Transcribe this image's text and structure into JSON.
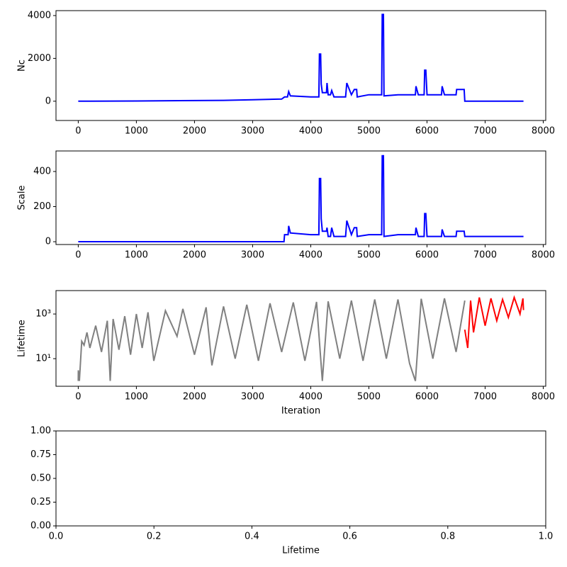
{
  "chart_data": [
    {
      "type": "line",
      "ylabel": "Nc",
      "xlim": [
        -383,
        8043
      ],
      "ylim": [
        -900,
        4230
      ],
      "xticks": [
        0,
        1000,
        2000,
        3000,
        4000,
        5000,
        6000,
        7000,
        8000
      ],
      "yticks": [
        0,
        2000,
        4000
      ],
      "series": [
        {
          "color": "#0000ff",
          "x": [
            0,
            1000,
            2000,
            2500,
            3000,
            3500,
            3550,
            3600,
            3620,
            3650,
            4000,
            4140,
            4150,
            4170,
            4180,
            4200,
            4270,
            4280,
            4300,
            4340,
            4360,
            4400,
            4600,
            4620,
            4700,
            4750,
            4790,
            4800,
            5000,
            5220,
            5230,
            5250,
            5260,
            5500,
            5800,
            5810,
            5850,
            5950,
            5960,
            5980,
            6000,
            6250,
            6260,
            6300,
            6500,
            6510,
            6640,
            6650,
            7660
          ],
          "values": [
            0,
            10,
            30,
            40,
            70,
            100,
            200,
            200,
            450,
            250,
            200,
            200,
            2200,
            2200,
            800,
            400,
            400,
            850,
            300,
            300,
            500,
            200,
            200,
            850,
            300,
            550,
            550,
            200,
            300,
            300,
            4050,
            4050,
            250,
            300,
            300,
            700,
            300,
            300,
            1450,
            1450,
            300,
            300,
            700,
            300,
            300,
            550,
            550,
            0,
            0
          ]
        }
      ]
    },
    {
      "type": "line",
      "ylabel": "Scale",
      "xlim": [
        -383,
        8043
      ],
      "ylim": [
        -16,
        517
      ],
      "xticks": [
        0,
        1000,
        2000,
        3000,
        4000,
        5000,
        6000,
        7000,
        8000
      ],
      "yticks": [
        0,
        200,
        400
      ],
      "series": [
        {
          "color": "#0000ff",
          "x": [
            0,
            3540,
            3550,
            3610,
            3620,
            3650,
            4000,
            4140,
            4150,
            4170,
            4180,
            4200,
            4270,
            4280,
            4300,
            4340,
            4360,
            4400,
            4600,
            4620,
            4700,
            4750,
            4790,
            4800,
            5000,
            5220,
            5230,
            5250,
            5260,
            5500,
            5800,
            5810,
            5850,
            5950,
            5960,
            5980,
            6000,
            6250,
            6260,
            6300,
            6500,
            6510,
            6640,
            6650,
            7660
          ],
          "values": [
            0,
            0,
            40,
            40,
            90,
            50,
            40,
            40,
            360,
            360,
            130,
            60,
            60,
            80,
            30,
            30,
            80,
            30,
            30,
            120,
            40,
            80,
            80,
            30,
            40,
            40,
            490,
            490,
            30,
            40,
            40,
            80,
            30,
            30,
            160,
            160,
            30,
            30,
            70,
            30,
            30,
            60,
            60,
            30,
            30
          ]
        }
      ]
    },
    {
      "type": "line",
      "ylabel": "Lifetime",
      "xlabel": "Iteration",
      "log_y": true,
      "xlim": [
        -383,
        8043
      ],
      "ylim": [
        0.58,
        11200
      ],
      "xticks": [
        0,
        1000,
        2000,
        3000,
        4000,
        5000,
        6000,
        7000,
        8000
      ],
      "yticks": [
        {
          "value": 10,
          "label": "10¹"
        },
        {
          "value": 1000,
          "label": "10³"
        }
      ],
      "series": [
        {
          "color": "#808080",
          "x": [
            0,
            1,
            20,
            60,
            100,
            150,
            200,
            300,
            400,
            500,
            550,
            600,
            700,
            800,
            900,
            1000,
            1100,
            1200,
            1300,
            1500,
            1700,
            1800,
            2000,
            2200,
            2300,
            2500,
            2700,
            2900,
            3100,
            3300,
            3500,
            3700,
            3900,
            4100,
            4200,
            4300,
            4500,
            4700,
            4900,
            5100,
            5300,
            5500,
            5700,
            5800,
            5900,
            6100,
            6300,
            6500,
            6650
          ],
          "values": [
            1,
            3,
            1,
            60,
            40,
            150,
            30,
            300,
            20,
            500,
            1,
            600,
            25,
            800,
            15,
            1000,
            30,
            1200,
            8,
            1400,
            100,
            1700,
            15,
            2000,
            5,
            2200,
            10,
            2600,
            8,
            3000,
            20,
            3300,
            8,
            3500,
            1,
            3700,
            10,
            4000,
            8,
            4500,
            10,
            4500,
            6,
            1,
            4800,
            10,
            5000,
            20,
            4000
          ]
        },
        {
          "color": "#ff0000",
          "x": [
            6650,
            6700,
            6750,
            6800,
            6900,
            7000,
            7100,
            7200,
            7300,
            7400,
            7500,
            7600,
            7650,
            7660
          ],
          "values": [
            200,
            30,
            4000,
            150,
            5500,
            300,
            5000,
            500,
            4500,
            700,
            5500,
            1000,
            5000,
            1500
          ]
        }
      ]
    },
    {
      "type": "empty",
      "xlabel": "Lifetime",
      "xlim": [
        0,
        1
      ],
      "ylim": [
        0,
        1
      ],
      "xticks": [
        {
          "value": 0,
          "label": "0.0"
        },
        {
          "value": 0.2,
          "label": "0.2"
        },
        {
          "value": 0.4,
          "label": "0.4"
        },
        {
          "value": 0.6,
          "label": "0.6"
        },
        {
          "value": 0.8,
          "label": "0.8"
        },
        {
          "value": 1,
          "label": "1.0"
        }
      ],
      "yticks": [
        {
          "value": 0,
          "label": "0.00"
        },
        {
          "value": 0.25,
          "label": "0.25"
        },
        {
          "value": 0.5,
          "label": "0.50"
        },
        {
          "value": 0.75,
          "label": "0.75"
        },
        {
          "value": 1,
          "label": "1.00"
        }
      ]
    }
  ]
}
